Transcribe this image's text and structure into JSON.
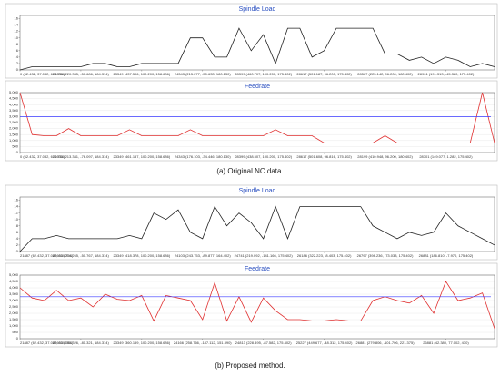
{
  "captions": [
    "(a) Original NC data.",
    "(b) Proposed method."
  ],
  "chart_data": [
    {
      "type": "line",
      "title": "Spindle Load",
      "color": "#222222",
      "grid": false,
      "x": [
        0,
        1,
        2,
        3,
        4,
        5,
        6,
        7,
        8,
        9,
        10,
        11,
        12,
        13,
        14,
        15,
        16,
        17,
        18,
        19,
        20,
        21,
        22,
        23,
        24,
        25,
        26,
        27,
        28,
        29,
        30,
        31,
        32,
        33,
        34,
        35,
        36,
        37,
        38,
        39
      ],
      "values": [
        0,
        1,
        1,
        1,
        1,
        1,
        2,
        2,
        1,
        1,
        2,
        2,
        2,
        2,
        10,
        10,
        4,
        4,
        13,
        6,
        11,
        2,
        13,
        13,
        4,
        6,
        13,
        13,
        13,
        13,
        5,
        5,
        3,
        4,
        2,
        4,
        3,
        1,
        2,
        1
      ],
      "xlim": [
        0,
        39
      ],
      "ylim": [
        0,
        17
      ],
      "xticks": [
        {
          "value": 0,
          "label": "0 (62.432, 37.082, 610.754)"
        },
        {
          "value": 5,
          "label": "22633 (220.335, -50.686, 184.314)"
        },
        {
          "value": 10,
          "label": "23349 (437.506, 100.200, 158.686)"
        },
        {
          "value": 15,
          "label": "24343 (215.277, -50.633, 180.130)"
        },
        {
          "value": 20,
          "label": "28399 (460.707, 100.200, 175.402)"
        },
        {
          "value": 25,
          "label": "28617 (501.187, 96.200, 175.402)"
        },
        {
          "value": 30,
          "label": "28567 (223.142, 96.200, 180.402)"
        },
        {
          "value": 35,
          "label": "28901 (191.313, -45.380, 175.402)"
        }
      ],
      "yticks": [
        0,
        2,
        4,
        6,
        8,
        10,
        12,
        14,
        16
      ]
    },
    {
      "type": "line",
      "title": "Feedrate",
      "color": "#e03030",
      "grid": true,
      "reference_line": {
        "value": 3000,
        "color": "#3a3aff"
      },
      "x": [
        0,
        1,
        2,
        3,
        4,
        5,
        6,
        7,
        8,
        9,
        10,
        11,
        12,
        13,
        14,
        15,
        16,
        17,
        18,
        19,
        20,
        21,
        22,
        23,
        24,
        25,
        26,
        27,
        28,
        29,
        30,
        31,
        32,
        33,
        34,
        35,
        36,
        37,
        38,
        39
      ],
      "values": [
        5000,
        1500,
        1400,
        1400,
        2000,
        1400,
        1400,
        1400,
        1400,
        1900,
        1400,
        1400,
        1400,
        1400,
        1900,
        1400,
        1400,
        1400,
        1400,
        1400,
        1400,
        1900,
        1400,
        1400,
        1400,
        800,
        800,
        800,
        800,
        800,
        1400,
        800,
        800,
        800,
        800,
        800,
        800,
        800,
        5000,
        800
      ],
      "xlim": [
        0,
        39
      ],
      "ylim": [
        0,
        5000
      ],
      "xticks": [
        {
          "value": 0,
          "label": "0 (62.432, 37.082, 610.754)"
        },
        {
          "value": 5,
          "label": "22633 (213.341, -76.097, 184.314)"
        },
        {
          "value": 10,
          "label": "23349 (461.157, 100.200, 158.686)"
        },
        {
          "value": 15,
          "label": "24343 (176.103, -34.446, 180.130)"
        },
        {
          "value": 20,
          "label": "28399 (438.507, 100.200, 175.402)"
        },
        {
          "value": 25,
          "label": "28617 (501.608, 96.816, 175.402)"
        },
        {
          "value": 30,
          "label": "28199 (410.948, 96.200, 180.402)"
        },
        {
          "value": 35,
          "label": "28701 (149.077, 1.282, 175.402)"
        }
      ],
      "yticks": [
        0,
        500,
        {
          "value": 1000,
          "label": "1,000"
        },
        {
          "value": 1500,
          "label": "1,500"
        },
        {
          "value": 2000,
          "label": "2,000"
        },
        {
          "value": 2500,
          "label": "2,500"
        },
        {
          "value": 3000,
          "label": "3,000"
        },
        {
          "value": 3500,
          "label": "3,500"
        },
        {
          "value": 4000,
          "label": "4,000"
        },
        {
          "value": 4500,
          "label": "4,500"
        },
        {
          "value": 5000,
          "label": "5,000"
        }
      ]
    },
    {
      "type": "line",
      "title": "Spindle Load",
      "color": "#222222",
      "grid": false,
      "x": [
        0,
        1,
        2,
        3,
        4,
        5,
        6,
        7,
        8,
        9,
        10,
        11,
        12,
        13,
        14,
        15,
        16,
        17,
        18,
        19,
        20,
        21,
        22,
        23,
        24,
        25,
        26,
        27,
        28,
        29,
        30,
        31,
        32,
        33,
        34,
        35,
        36,
        37,
        38,
        39
      ],
      "values": [
        0,
        4,
        4,
        5,
        4,
        4,
        4,
        4,
        4,
        5,
        4,
        12,
        10,
        13,
        6,
        4,
        14,
        8,
        12,
        9,
        4,
        14,
        4,
        14,
        14,
        14,
        14,
        14,
        14,
        8,
        6,
        4,
        6,
        5,
        6,
        12,
        8,
        6,
        4,
        2
      ],
      "xlim": [
        0,
        39
      ],
      "ylim": [
        0,
        17
      ],
      "xticks": [
        {
          "value": 0,
          "label": "21887 (62.432, 37.082, 610.754)"
        },
        {
          "value": 5,
          "label": "22633 (214.265, -50.767, 184.314)"
        },
        {
          "value": 10,
          "label": "23349 (418.378, 100.200, 158.686)"
        },
        {
          "value": 15,
          "label": "24103 (243.753, -89.877, 164.402)"
        },
        {
          "value": 20,
          "label": "24741 (219.092, -141.166, 175.402)"
        },
        {
          "value": 25,
          "label": "26186 (322.223, -8.403, 175.402)"
        },
        {
          "value": 30,
          "label": "26797 (398.236, -73.033, 175.402)"
        },
        {
          "value": 35,
          "label": "26881 (186.810, -7.970, 175.402)"
        }
      ],
      "yticks": [
        0,
        2,
        4,
        6,
        8,
        10,
        12,
        14,
        16
      ]
    },
    {
      "type": "line",
      "title": "Feedrate",
      "color": "#e03030",
      "grid": true,
      "reference_line": {
        "value": 3300,
        "color": "#3a3aff"
      },
      "x": [
        0,
        1,
        2,
        3,
        4,
        5,
        6,
        7,
        8,
        9,
        10,
        11,
        12,
        13,
        14,
        15,
        16,
        17,
        18,
        19,
        20,
        21,
        22,
        23,
        24,
        25,
        26,
        27,
        28,
        29,
        30,
        31,
        32,
        33,
        34,
        35,
        36,
        37,
        38,
        39
      ],
      "values": [
        4000,
        3200,
        3000,
        3800,
        3000,
        3200,
        2500,
        3500,
        3100,
        3000,
        3400,
        1400,
        3400,
        3200,
        3000,
        1500,
        4400,
        1400,
        3300,
        1300,
        3200,
        2200,
        1500,
        1500,
        1400,
        1400,
        1500,
        1400,
        1400,
        3000,
        3300,
        3000,
        2800,
        3400,
        2000,
        4500,
        3000,
        3200,
        3600,
        800
      ],
      "xlim": [
        0,
        39
      ],
      "ylim": [
        0,
        5000
      ],
      "xticks": [
        {
          "value": 0,
          "label": "21887 (62.432, 37.082, 610.754)"
        },
        {
          "value": 5,
          "label": "22633 (180.326, -81.321, 184.314)"
        },
        {
          "value": 10,
          "label": "23349 (360.159, 100.200, 158.686)"
        },
        {
          "value": 15,
          "label": "24166 (258.766, -187.112, 151.390)"
        },
        {
          "value": 20,
          "label": "24813 (228.495, -87.582, 175.402)"
        },
        {
          "value": 25,
          "label": "25227 (449.677, -48.312, 175.402)"
        },
        {
          "value": 30,
          "label": "26881 (279.806, -101.706, 221.375)"
        },
        {
          "value": 35,
          "label": "26881 (42.380, 77.002, 430)"
        }
      ],
      "yticks": [
        0,
        500,
        {
          "value": 1000,
          "label": "1,000"
        },
        {
          "value": 1500,
          "label": "1,500"
        },
        {
          "value": 2000,
          "label": "2,000"
        },
        {
          "value": 2500,
          "label": "2,500"
        },
        {
          "value": 3000,
          "label": "3,000"
        },
        {
          "value": 3500,
          "label": "3,500"
        },
        {
          "value": 4000,
          "label": "4,000"
        },
        {
          "value": 4500,
          "label": "4,500"
        },
        {
          "value": 5000,
          "label": "5,000"
        }
      ]
    }
  ]
}
